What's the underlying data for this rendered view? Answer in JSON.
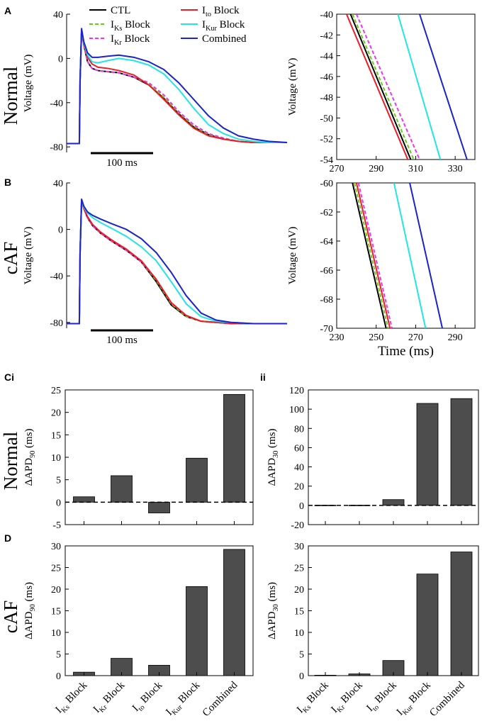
{
  "figure": {
    "panel_labels": {
      "A": "A",
      "B": "B",
      "Ci": "Ci",
      "ii": "ii",
      "D": "D"
    },
    "row_labels": {
      "normal": "Normal",
      "caf": "cAF"
    },
    "scale_bar_label": "100 ms",
    "legend": [
      {
        "key": "ctl",
        "label": "CTL",
        "sub": "",
        "suffix": "",
        "color": "#000000",
        "dash": false
      },
      {
        "key": "iks",
        "label": "I",
        "sub": "Ks",
        "suffix": " Block",
        "color": "#66cc1a",
        "dash": true
      },
      {
        "key": "ikr",
        "label": "I",
        "sub": "Kr",
        "suffix": " Block",
        "color": "#ee33ee",
        "dash": true
      },
      {
        "key": "ito",
        "label": "I",
        "sub": "to",
        "suffix": " Block",
        "color": "#ee1c24",
        "dash": false
      },
      {
        "key": "ikur",
        "label": "I",
        "sub": "Kur",
        "suffix": " Block",
        "color": "#22e5e5",
        "dash": false
      },
      {
        "key": "combined",
        "label": "Combined",
        "sub": "",
        "suffix": "",
        "color": "#1a23cc",
        "dash": false
      }
    ],
    "bar_color": "#4d4d4d",
    "bar_categories": [
      {
        "main": "I",
        "sub": "Ks",
        "rest": " Block"
      },
      {
        "main": "I",
        "sub": "Kr",
        "rest": " Block"
      },
      {
        "main": "I",
        "sub": "to",
        "rest": " Block"
      },
      {
        "main": "I",
        "sub": "Kur",
        "rest": " Block"
      },
      {
        "main": "Combined",
        "sub": "",
        "rest": ""
      }
    ]
  },
  "chart_data": [
    {
      "id": "A-left",
      "type": "line",
      "panel": "A",
      "title": "",
      "ylabel": "Voltage (mV)",
      "xlabel": "",
      "ylim": [
        -85,
        40
      ],
      "yticks": [
        "40",
        "0",
        "-40",
        "-80"
      ],
      "ytick_values": [
        40,
        0,
        -40,
        -80
      ],
      "xlim": [
        -10,
        285
      ],
      "series": [
        {
          "key": "ctl",
          "x": [
            -10,
            7,
            8,
            10,
            13,
            18,
            24,
            32,
            45,
            60,
            80,
            100,
            120,
            140,
            160,
            180,
            200,
            220,
            240,
            260,
            285
          ],
          "y": [
            -77,
            -77,
            -20,
            26,
            12,
            -3,
            -9,
            -11,
            -12,
            -13,
            -17,
            -24,
            -36,
            -50,
            -62,
            -69,
            -73,
            -75,
            -76,
            -76,
            -76
          ]
        },
        {
          "key": "iks",
          "x": [
            -10,
            7,
            8,
            10,
            13,
            18,
            24,
            32,
            45,
            60,
            80,
            100,
            120,
            140,
            160,
            180,
            200,
            220,
            240,
            260,
            285
          ],
          "y": [
            -77,
            -77,
            -20,
            26,
            12,
            -3,
            -9,
            -11,
            -12,
            -13,
            -17,
            -23,
            -35,
            -49,
            -61,
            -69,
            -73,
            -75,
            -76,
            -76,
            -76
          ]
        },
        {
          "key": "ikr",
          "x": [
            -10,
            7,
            8,
            10,
            13,
            18,
            24,
            32,
            45,
            60,
            80,
            100,
            120,
            140,
            160,
            180,
            200,
            220,
            240,
            260,
            285
          ],
          "y": [
            -77,
            -77,
            -20,
            26,
            12,
            -3,
            -9,
            -11,
            -12,
            -13,
            -17,
            -22,
            -33,
            -48,
            -60,
            -68,
            -72,
            -75,
            -76,
            -76,
            -76
          ]
        },
        {
          "key": "ito",
          "x": [
            -10,
            7,
            8,
            10,
            13,
            18,
            24,
            32,
            45,
            60,
            80,
            100,
            120,
            140,
            160,
            180,
            200,
            220,
            240,
            260,
            285
          ],
          "y": [
            -77,
            -77,
            -20,
            25,
            13,
            1,
            -5,
            -8,
            -9,
            -11,
            -15,
            -24,
            -37,
            -51,
            -63,
            -70,
            -73,
            -75,
            -76,
            -76,
            -76
          ]
        },
        {
          "key": "ikur",
          "x": [
            -10,
            7,
            8,
            10,
            13,
            18,
            24,
            32,
            45,
            60,
            80,
            100,
            120,
            140,
            160,
            180,
            200,
            220,
            240,
            260,
            285
          ],
          "y": [
            -77,
            -77,
            -20,
            26,
            14,
            3,
            -3,
            -4,
            -2,
            0,
            -2,
            -6,
            -14,
            -28,
            -45,
            -60,
            -68,
            -73,
            -75,
            -76,
            -76
          ]
        },
        {
          "key": "combined",
          "x": [
            -10,
            7,
            8,
            10,
            13,
            18,
            24,
            32,
            45,
            60,
            80,
            100,
            120,
            140,
            160,
            180,
            200,
            220,
            240,
            260,
            285
          ],
          "y": [
            -77,
            -77,
            -20,
            27,
            15,
            5,
            1,
            1,
            2,
            3,
            1,
            -3,
            -10,
            -22,
            -37,
            -52,
            -63,
            -70,
            -73,
            -75,
            -76
          ]
        }
      ]
    },
    {
      "id": "A-right",
      "type": "line",
      "panel": "A",
      "title": "",
      "ylabel": "Voltage (mV)",
      "xlabel": "",
      "xlim": [
        270,
        340
      ],
      "ylim": [
        -54,
        -40
      ],
      "xticks": [
        "270",
        "290",
        "310",
        "330"
      ],
      "xtick_values": [
        270,
        290,
        310,
        330
      ],
      "yticks": [
        "-40",
        "-42",
        "-44",
        "-46",
        "-48",
        "-50",
        "-52",
        "-54"
      ],
      "ytick_values": [
        -40,
        -42,
        -44,
        -46,
        -48,
        -50,
        -52,
        -54
      ],
      "series": [
        {
          "key": "ctl",
          "x": [
            277,
            307.5
          ],
          "y": [
            -40,
            -54
          ]
        },
        {
          "key": "iks",
          "x": [
            278,
            309
          ],
          "y": [
            -40,
            -54
          ]
        },
        {
          "key": "ikr",
          "x": [
            280,
            312
          ],
          "y": [
            -40,
            -54
          ]
        },
        {
          "key": "ito",
          "x": [
            275,
            306
          ],
          "y": [
            -40,
            -54
          ]
        },
        {
          "key": "ikur",
          "x": [
            301,
            322.5
          ],
          "y": [
            -40,
            -54
          ]
        },
        {
          "key": "combined",
          "x": [
            312,
            336
          ],
          "y": [
            -40,
            -54
          ]
        }
      ]
    },
    {
      "id": "B-left",
      "type": "line",
      "panel": "B",
      "title": "",
      "ylabel": "Voltage (mV)",
      "xlabel": "",
      "ylim": [
        -85,
        40
      ],
      "yticks": [
        "40",
        "0",
        "-40",
        "-80"
      ],
      "ytick_values": [
        40,
        0,
        -40,
        -80
      ],
      "xlim": [
        -10,
        285
      ],
      "series": [
        {
          "key": "ctl",
          "x": [
            -10,
            7,
            8,
            10,
            13,
            18,
            25,
            35,
            50,
            70,
            90,
            110,
            130,
            150,
            170,
            190,
            210,
            240,
            285
          ],
          "y": [
            -81,
            -81,
            -20,
            25,
            18,
            10,
            3,
            -3,
            -10,
            -18,
            -28,
            -45,
            -65,
            -75,
            -79,
            -80,
            -81,
            -81,
            -81
          ]
        },
        {
          "key": "iks",
          "x": [
            -10,
            7,
            8,
            10,
            13,
            18,
            25,
            35,
            50,
            70,
            90,
            110,
            130,
            150,
            170,
            190,
            210,
            240,
            285
          ],
          "y": [
            -81,
            -81,
            -20,
            25,
            18,
            10,
            3,
            -3,
            -10,
            -18,
            -28,
            -44,
            -64,
            -75,
            -79,
            -80,
            -81,
            -81,
            -81
          ]
        },
        {
          "key": "ikr",
          "x": [
            -10,
            7,
            8,
            10,
            13,
            18,
            25,
            35,
            50,
            70,
            90,
            110,
            130,
            150,
            170,
            190,
            210,
            240,
            285
          ],
          "y": [
            -81,
            -81,
            -20,
            25,
            18,
            10,
            3,
            -3,
            -10,
            -18,
            -28,
            -43,
            -63,
            -74,
            -79,
            -80,
            -81,
            -81,
            -81
          ]
        },
        {
          "key": "ito",
          "x": [
            -10,
            7,
            8,
            10,
            13,
            18,
            25,
            35,
            50,
            70,
            90,
            110,
            130,
            150,
            170,
            190,
            210,
            240,
            285
          ],
          "y": [
            -81,
            -81,
            -20,
            24,
            18,
            11,
            4,
            -2,
            -9,
            -17,
            -27,
            -43,
            -63,
            -74,
            -79,
            -80,
            -81,
            -81,
            -81
          ]
        },
        {
          "key": "ikur",
          "x": [
            -10,
            7,
            8,
            10,
            13,
            18,
            25,
            35,
            50,
            70,
            90,
            110,
            130,
            150,
            170,
            190,
            210,
            240,
            285
          ],
          "y": [
            -81,
            -81,
            -20,
            25,
            19,
            14,
            10,
            6,
            1,
            -6,
            -15,
            -27,
            -45,
            -64,
            -75,
            -79,
            -80,
            -81,
            -81
          ]
        },
        {
          "key": "combined",
          "x": [
            -10,
            7,
            8,
            10,
            13,
            18,
            25,
            35,
            50,
            70,
            90,
            110,
            130,
            150,
            170,
            190,
            210,
            240,
            285
          ],
          "y": [
            -81,
            -81,
            -20,
            26,
            20,
            15,
            12,
            9,
            5,
            0,
            -8,
            -20,
            -37,
            -57,
            -72,
            -78,
            -80,
            -81,
            -81
          ]
        }
      ]
    },
    {
      "id": "B-right",
      "type": "line",
      "panel": "B",
      "title": "",
      "ylabel": "Voltage (mV)",
      "xlabel": "Time (ms)",
      "xlim": [
        230,
        300
      ],
      "ylim": [
        -70,
        -60
      ],
      "xticks": [
        "230",
        "250",
        "270",
        "290"
      ],
      "xtick_values": [
        230,
        250,
        270,
        290
      ],
      "yticks": [
        "-60",
        "-62",
        "-64",
        "-66",
        "-68",
        "-70"
      ],
      "ytick_values": [
        -60,
        -62,
        -64,
        -66,
        -68,
        -70
      ],
      "series": [
        {
          "key": "ctl",
          "x": [
            238,
            255
          ],
          "y": [
            -60,
            -70
          ]
        },
        {
          "key": "iks",
          "x": [
            239,
            256
          ],
          "y": [
            -60,
            -70
          ]
        },
        {
          "key": "ikr",
          "x": [
            241,
            258
          ],
          "y": [
            -60,
            -70
          ]
        },
        {
          "key": "ito",
          "x": [
            240,
            257
          ],
          "y": [
            -60,
            -70
          ]
        },
        {
          "key": "ikur",
          "x": [
            259,
            275
          ],
          "y": [
            -60,
            -70
          ]
        },
        {
          "key": "combined",
          "x": [
            267,
            283.5
          ],
          "y": [
            -60,
            -70
          ]
        }
      ]
    },
    {
      "id": "Ci",
      "type": "bar",
      "panel": "Ci",
      "title": "",
      "ylabel_main": "ΔAPD",
      "ylabel_sub": "90",
      "ylabel_unit": " (ms)",
      "ylim": [
        -5,
        25
      ],
      "yticks": [
        "-5",
        "0",
        "5",
        "10",
        "15",
        "20",
        "25"
      ],
      "ytick_values": [
        -5,
        0,
        5,
        10,
        15,
        20,
        25
      ],
      "values": [
        1.2,
        5.9,
        -2.4,
        9.8,
        24.0
      ],
      "zero_line": true
    },
    {
      "id": "Cii",
      "type": "bar",
      "panel": "ii",
      "title": "",
      "ylabel_main": "ΔAPD",
      "ylabel_sub": "30",
      "ylabel_unit": " (ms)",
      "ylim": [
        -20,
        120
      ],
      "yticks": [
        "-20",
        "0",
        "20",
        "40",
        "60",
        "80",
        "100",
        "120"
      ],
      "ytick_values": [
        -20,
        0,
        20,
        40,
        60,
        80,
        100,
        120
      ],
      "values": [
        0.2,
        0.2,
        6.0,
        106.0,
        111.0
      ],
      "zero_line": true
    },
    {
      "id": "Di",
      "type": "bar",
      "panel": "D",
      "title": "",
      "ylabel_main": "ΔAPD",
      "ylabel_sub": "90",
      "ylabel_unit": " (ms)",
      "ylim": [
        0,
        30
      ],
      "yticks": [
        "0",
        "5",
        "10",
        "15",
        "20",
        "25",
        "30"
      ],
      "ytick_values": [
        0,
        5,
        10,
        15,
        20,
        25,
        30
      ],
      "values": [
        0.8,
        4.0,
        2.4,
        20.6,
        29.2
      ],
      "zero_line": false
    },
    {
      "id": "Dii",
      "type": "bar",
      "panel": "D",
      "title": "",
      "ylabel_main": "ΔAPD",
      "ylabel_sub": "30",
      "ylabel_unit": " (ms)",
      "ylim": [
        0,
        30
      ],
      "yticks": [
        "0",
        "5",
        "10",
        "15",
        "20",
        "25",
        "30"
      ],
      "ytick_values": [
        0,
        5,
        10,
        15,
        20,
        25,
        30
      ],
      "values": [
        0.1,
        0.4,
        3.5,
        23.5,
        28.6
      ],
      "zero_line": false
    }
  ]
}
